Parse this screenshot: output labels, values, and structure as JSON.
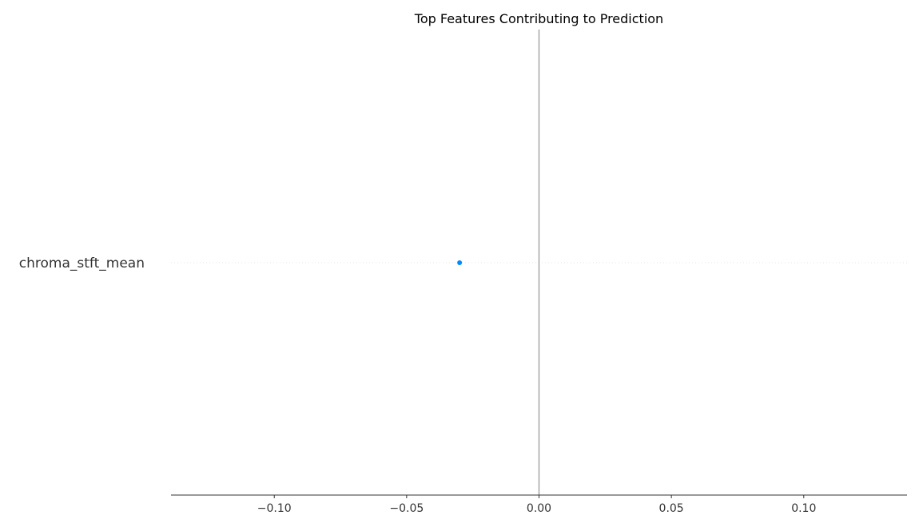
{
  "chart_data": {
    "type": "scatter",
    "title": "Top Features Contributing to Prediction",
    "xlabel": "",
    "ylabel": "",
    "xlim": [
      -0.139,
      0.139
    ],
    "x_ticks": [
      -0.1,
      -0.05,
      0.0,
      0.05,
      0.1
    ],
    "x_tick_labels": [
      "−0.10",
      "−0.05",
      "0.00",
      "0.05",
      "0.10"
    ],
    "zero_line": 0.0,
    "features": [
      "chroma_stft_mean"
    ],
    "points": [
      {
        "feature": "chroma_stft_mean",
        "x": -0.03
      }
    ],
    "colors": {
      "point": "#008bfb",
      "zero_line": "#999999",
      "axis": "#333333",
      "row_guide": "#e6e6e6"
    },
    "grid": false,
    "legend": "none"
  }
}
